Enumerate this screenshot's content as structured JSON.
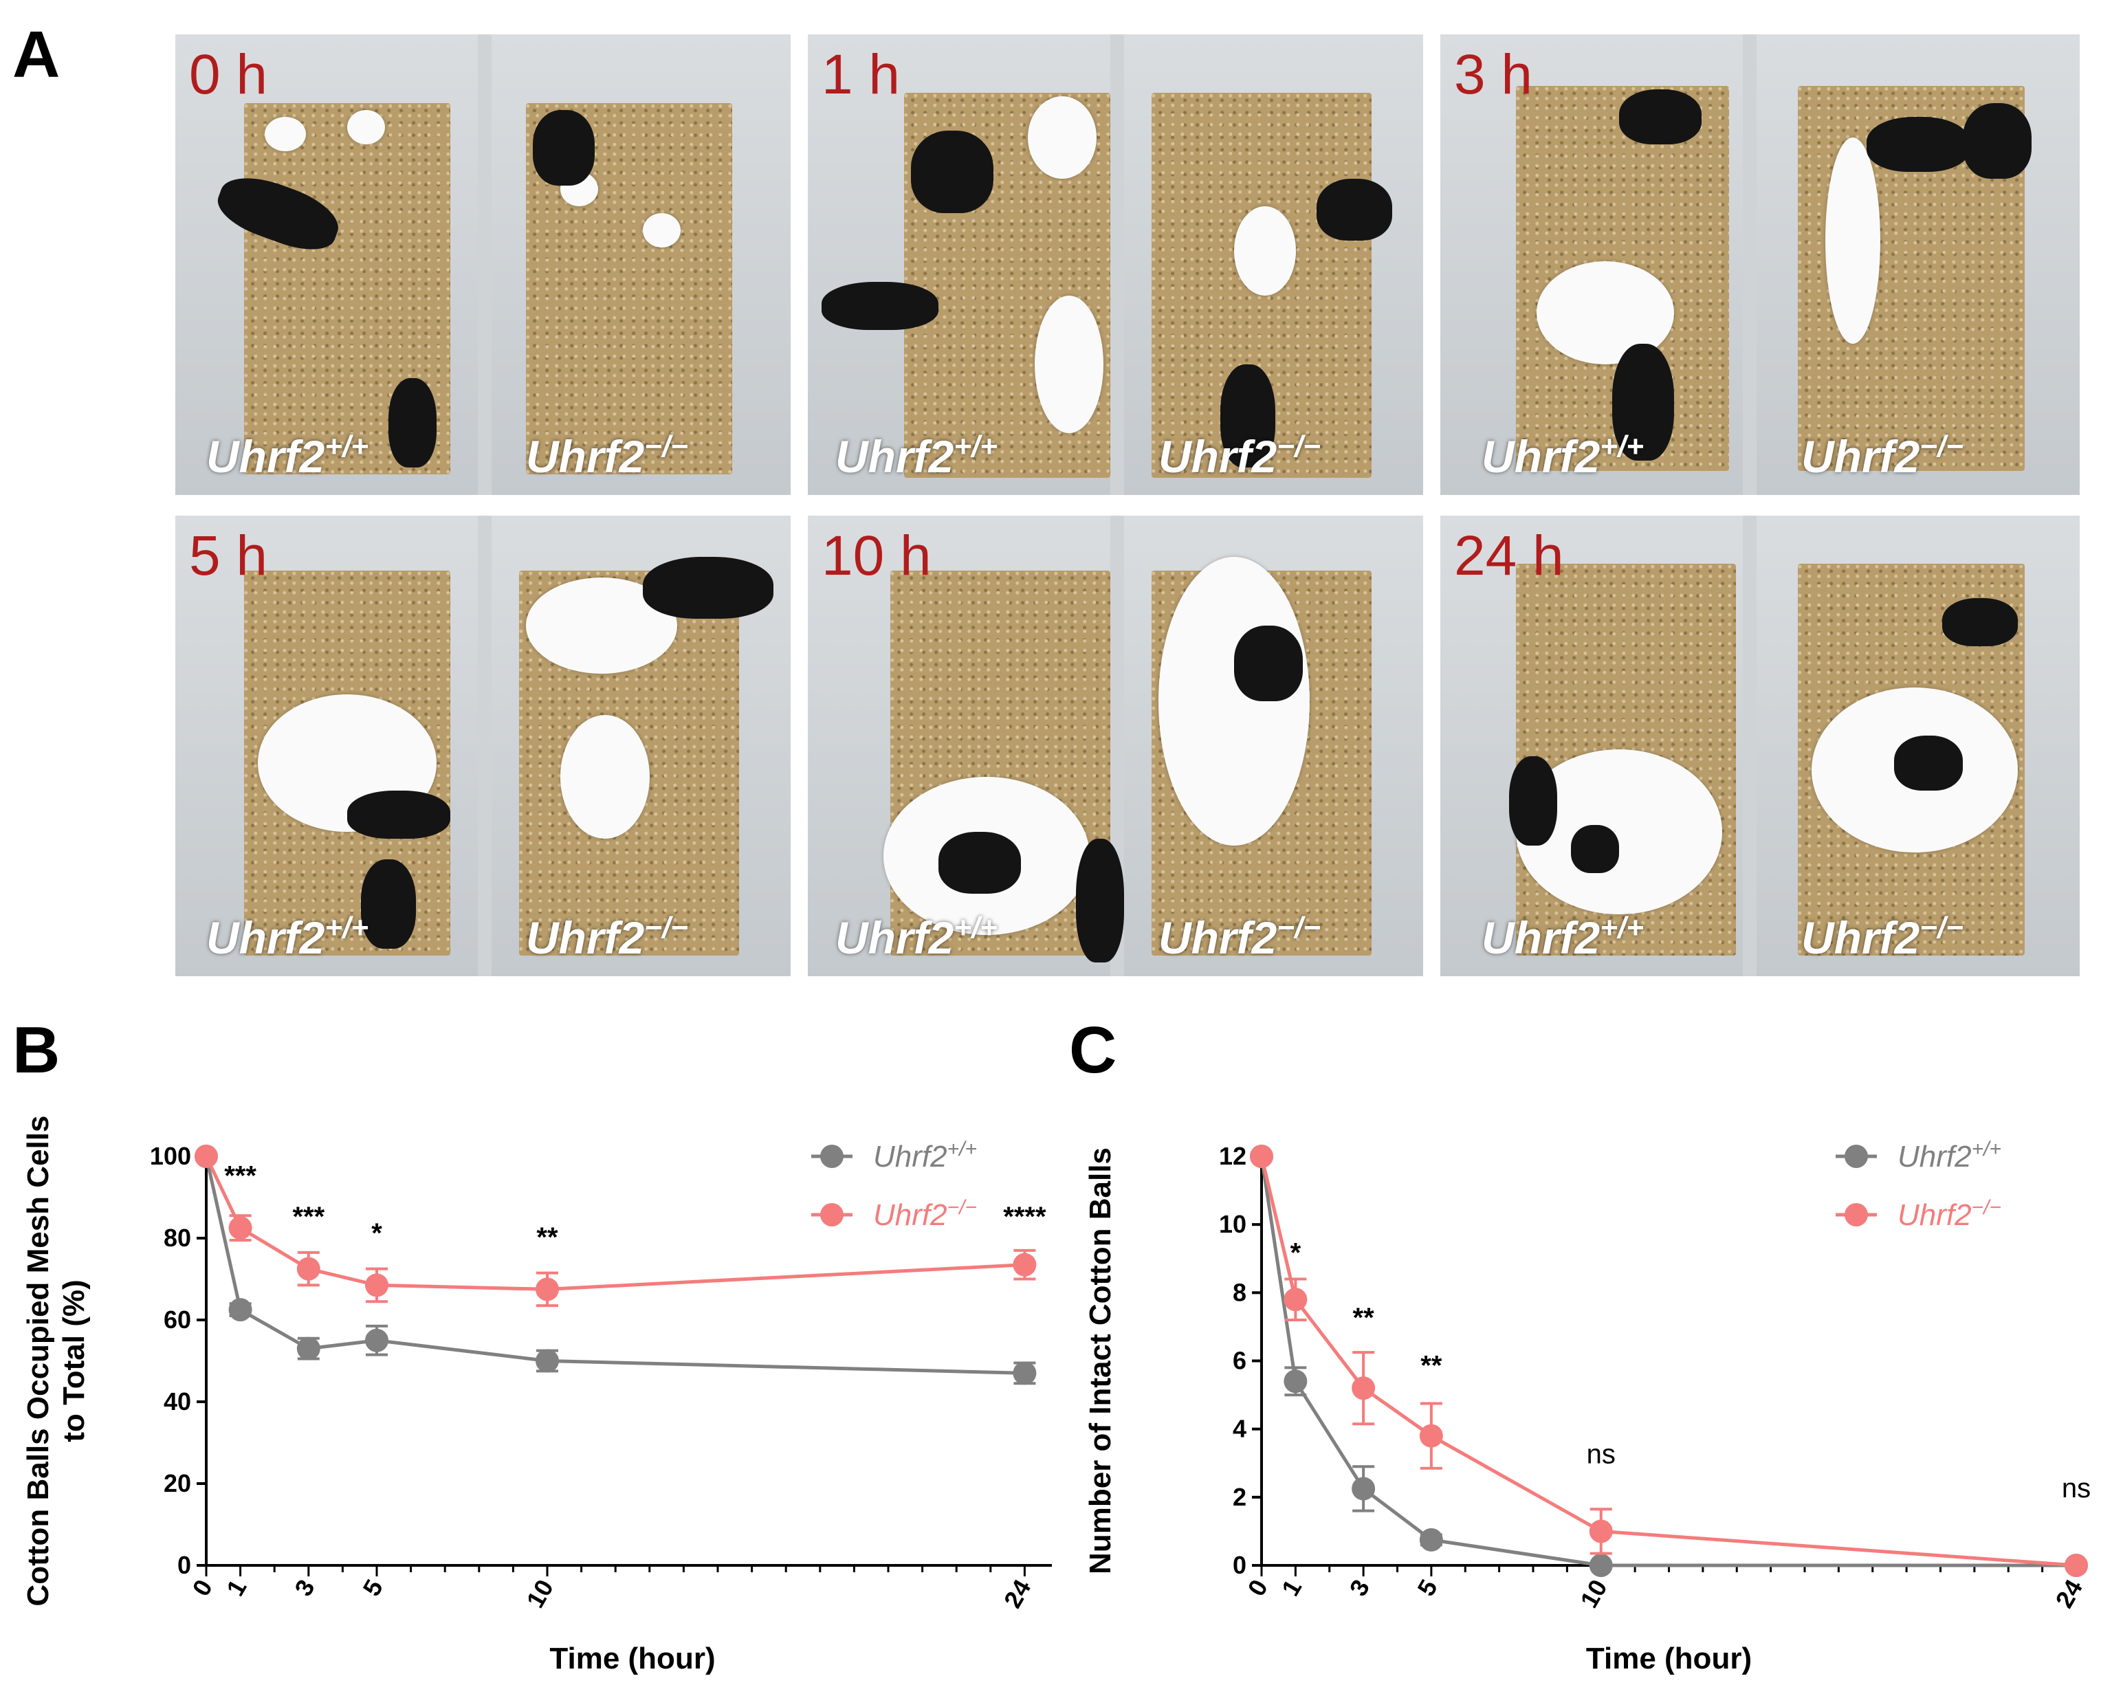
{
  "panels": {
    "a": "A",
    "b": "B",
    "c": "C"
  },
  "photos": {
    "time_labels": [
      "0 h",
      "1 h",
      "3 h",
      "5 h",
      "10 h",
      "24 h"
    ],
    "genotype_base": "Uhrf2",
    "wt_sup": "+/+",
    "ko_sup": "−/−"
  },
  "colors": {
    "wt": "#808080",
    "ko": "#f47c7c",
    "time": "#b11c1c"
  },
  "chart_data": [
    {
      "panel": "B",
      "type": "line",
      "ylabel_line1": "Cotton Balls Occupied Mesh Cells",
      "ylabel_line2": "to Total (%)",
      "xlabel": "Time (hour)",
      "x": [
        0,
        1,
        3,
        5,
        10,
        24
      ],
      "xlim": [
        0,
        25
      ],
      "ylim": [
        0,
        100
      ],
      "yticks": [
        0,
        20,
        40,
        60,
        80,
        100
      ],
      "xticklabels": [
        "0",
        "1",
        "3",
        "5",
        "10",
        "24"
      ],
      "series": [
        {
          "name": "Uhrf2+/+",
          "base": "Uhrf2",
          "sup": "+/+",
          "color": "#808080",
          "values": [
            100,
            62.5,
            53,
            55,
            50,
            47
          ],
          "errors": [
            0,
            1.5,
            2.5,
            3.5,
            2.5,
            2.5
          ]
        },
        {
          "name": "Uhrf2−/−",
          "base": "Uhrf2",
          "sup": "−/−",
          "color": "#f47c7c",
          "values": [
            100,
            82.5,
            72.5,
            68.5,
            67.5,
            73.5
          ],
          "errors": [
            0,
            3,
            4,
            4,
            4,
            3.5
          ]
        }
      ],
      "annotations": [
        {
          "x": 1,
          "text": "***",
          "y": 93
        },
        {
          "x": 3,
          "text": "***",
          "y": 83
        },
        {
          "x": 5,
          "text": "*",
          "y": 79
        },
        {
          "x": 10,
          "text": "**",
          "y": 78
        },
        {
          "x": 24,
          "text": "****",
          "y": 83
        }
      ],
      "legend": "top-right"
    },
    {
      "panel": "C",
      "type": "line",
      "ylabel": "Number of Intact Cotton Balls",
      "xlabel": "Time (hour)",
      "x": [
        0,
        1,
        3,
        5,
        10,
        24
      ],
      "xlim": [
        0,
        24
      ],
      "ylim": [
        0,
        12
      ],
      "yticks": [
        0,
        2,
        4,
        6,
        8,
        10,
        12
      ],
      "xticklabels": [
        "0",
        "1",
        "3",
        "5",
        "10",
        "24"
      ],
      "series": [
        {
          "name": "Uhrf2+/+",
          "base": "Uhrf2",
          "sup": "+/+",
          "color": "#808080",
          "values": [
            12,
            5.4,
            2.25,
            0.75,
            0,
            0
          ],
          "errors": [
            0,
            0.4,
            0.65,
            0.15,
            0,
            0
          ]
        },
        {
          "name": "Uhrf2−/−",
          "base": "Uhrf2",
          "sup": "−/−",
          "color": "#f47c7c",
          "values": [
            12,
            7.8,
            5.2,
            3.8,
            1.0,
            0
          ],
          "errors": [
            0,
            0.6,
            1.05,
            0.95,
            0.65,
            0
          ]
        }
      ],
      "annotations": [
        {
          "x": 1,
          "text": "*",
          "y": 8.9
        },
        {
          "x": 3,
          "text": "**",
          "y": 7.0
        },
        {
          "x": 5,
          "text": "**",
          "y": 5.6
        },
        {
          "x": 10,
          "text": "ns",
          "y": 3.0
        },
        {
          "x": 24,
          "text": "ns",
          "y": 2.0
        }
      ],
      "legend": "top-right"
    }
  ]
}
